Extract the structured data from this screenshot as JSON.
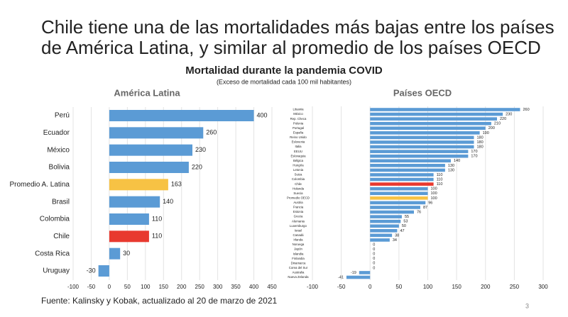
{
  "title_lines": [
    "Chile tiene una de las mortalidades más bajas entre los países",
    "de América Latina, y similar al promedio de los países OECD"
  ],
  "heading": "Mortalidad durante la pandemia COVID",
  "subheading": "(Exceso de mortalidad cada 100 mil habitantes)",
  "footer": "Fuente: Kalinsky y Kobak, actualizado al 20 de marzo de 2021",
  "page_number": "3",
  "chart_data": [
    {
      "type": "bar",
      "orientation": "horizontal",
      "title": "América Latina",
      "categories": [
        "Perú",
        "Ecuador",
        "México",
        "Bolivia",
        "Promedio A. Latina",
        "Brasil",
        "Colombia",
        "Chile",
        "Costa Rica",
        "Uruguay"
      ],
      "values": [
        400,
        260,
        230,
        220,
        163,
        140,
        110,
        110,
        30,
        -30
      ],
      "colors": [
        "#5b9bd5",
        "#5b9bd5",
        "#5b9bd5",
        "#5b9bd5",
        "#f7c244",
        "#5b9bd5",
        "#5b9bd5",
        "#e8392f",
        "#5b9bd5",
        "#5b9bd5"
      ],
      "xlim": [
        -100,
        450
      ],
      "xticks": [
        -100,
        -50,
        0,
        50,
        100,
        150,
        200,
        250,
        300,
        350,
        400,
        450
      ],
      "grid": true
    },
    {
      "type": "bar",
      "orientation": "horizontal",
      "title": "Países OECD",
      "categories": [
        "Lituania",
        "México",
        "Rep. Checa",
        "Polonia",
        "Portugal",
        "España",
        "Reino Unido",
        "Eslovenia",
        "Italia",
        "EEUU",
        "Eslovaquia",
        "Bélgica",
        "Hungría",
        "Letonia",
        "Suiza",
        "Colombia",
        "Chile",
        "Holanda",
        "Suecia",
        "Promedio OECD",
        "Austria",
        "Francia",
        "Estonia",
        "Grecia",
        "Alemania",
        "Luxemburgo",
        "Israel",
        "Canadá",
        "Irlanda",
        "Noruega",
        "Japón",
        "Islandia",
        "Finlandia",
        "Dinamarca",
        "Corea del Sur",
        "Australia",
        "Nueva Zelanda"
      ],
      "values": [
        260,
        230,
        220,
        210,
        200,
        190,
        180,
        180,
        180,
        170,
        170,
        140,
        130,
        130,
        110,
        110,
        110,
        100,
        100,
        100,
        96,
        87,
        76,
        55,
        53,
        50,
        47,
        38,
        34,
        0,
        0,
        0,
        0,
        0,
        0,
        -19,
        -41
      ],
      "colors": [
        "#5b9bd5",
        "#5b9bd5",
        "#5b9bd5",
        "#5b9bd5",
        "#5b9bd5",
        "#5b9bd5",
        "#5b9bd5",
        "#5b9bd5",
        "#5b9bd5",
        "#5b9bd5",
        "#5b9bd5",
        "#5b9bd5",
        "#5b9bd5",
        "#5b9bd5",
        "#5b9bd5",
        "#5b9bd5",
        "#e8392f",
        "#5b9bd5",
        "#5b9bd5",
        "#f7c244",
        "#5b9bd5",
        "#5b9bd5",
        "#5b9bd5",
        "#5b9bd5",
        "#5b9bd5",
        "#5b9bd5",
        "#5b9bd5",
        "#5b9bd5",
        "#5b9bd5",
        "#5b9bd5",
        "#5b9bd5",
        "#5b9bd5",
        "#5b9bd5",
        "#5b9bd5",
        "#5b9bd5",
        "#5b9bd5",
        "#5b9bd5"
      ],
      "xlim": [
        -100,
        300
      ],
      "xticks": [
        -100,
        -50,
        0,
        50,
        100,
        150,
        200,
        250,
        300
      ],
      "grid": true
    }
  ]
}
